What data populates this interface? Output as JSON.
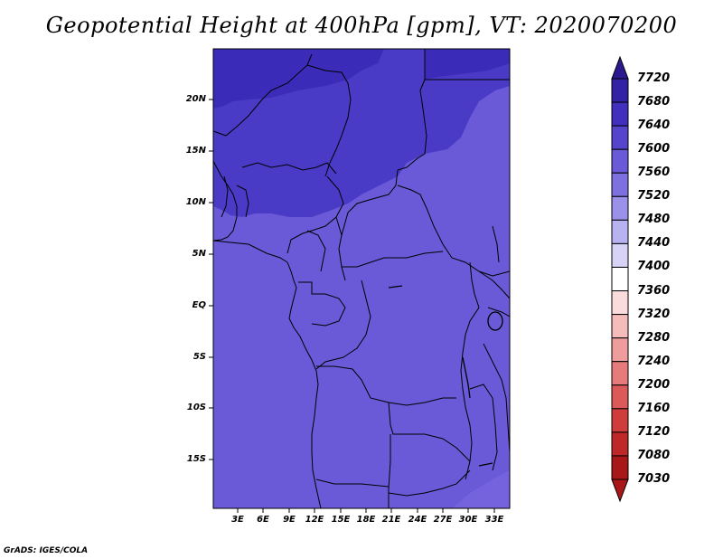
{
  "title": "Geopotential Height at 400hPa [gpm], VT: 2020070200",
  "lat_labels": [
    "20N",
    "15N",
    "10N",
    "5N",
    "EQ",
    "5S",
    "10S",
    "15S"
  ],
  "lon_labels": [
    "3E",
    "6E",
    "9E",
    "12E",
    "15E",
    "18E",
    "21E",
    "24E",
    "27E",
    "30E",
    "33E"
  ],
  "colorbar": {
    "levels": [
      "7720",
      "7680",
      "7640",
      "7600",
      "7560",
      "7520",
      "7480",
      "7440",
      "7400",
      "7360",
      "7320",
      "7280",
      "7240",
      "7200",
      "7160",
      "7120",
      "7080",
      "7030"
    ],
    "colors": [
      "#2b1a8f",
      "#3422a6",
      "#4030bd",
      "#5545cc",
      "#6a5ad8",
      "#7f70e2",
      "#9b90ea",
      "#b8b2f0",
      "#d6d3f6",
      "#ffffff",
      "#fbdcdc",
      "#f5bcbc",
      "#ee9c9c",
      "#e57b7b",
      "#dc5959",
      "#cf3c3c",
      "#bf2828",
      "#a81818"
    ]
  },
  "footer": "GrADS: IGES/COLA"
}
